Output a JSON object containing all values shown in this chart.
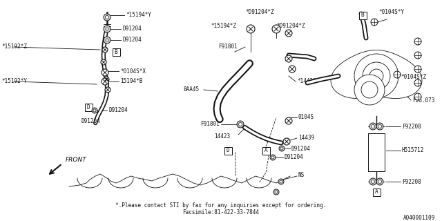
{
  "bg_color": "#ffffff",
  "line_color": "#111111",
  "fig_width": 6.4,
  "fig_height": 3.2,
  "dpi": 100,
  "footnote1": "*.Please contact STI by fax for any inquiries except for ordering.",
  "footnote2": "Facsimile:81-422-33-7844",
  "doc_number": "A040001109"
}
